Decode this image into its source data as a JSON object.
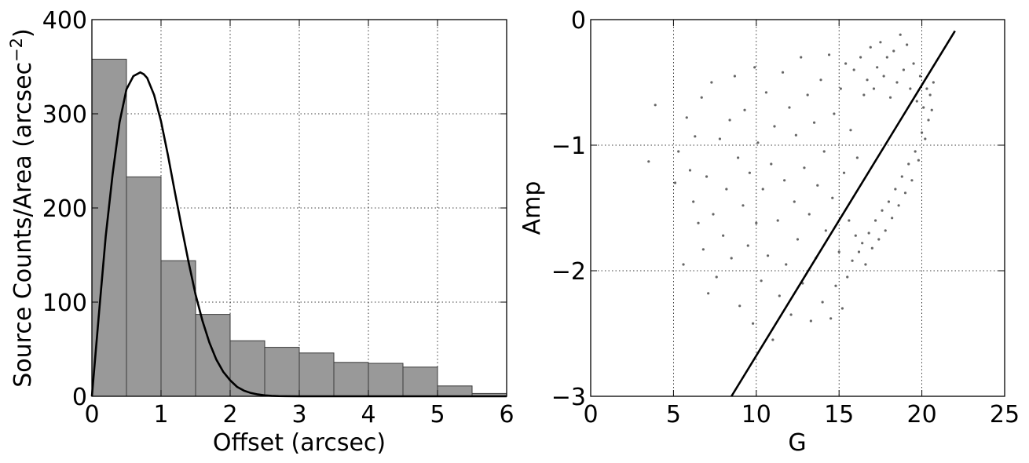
{
  "chart_data": [
    {
      "type": "bar",
      "subtype": "histogram_with_curve",
      "xlabel": "Offset (arcsec)",
      "ylabel": "Source Counts/Area (arcsec",
      "ylabel_superscript": "−2",
      "ylabel_suffix": ")",
      "xlim": [
        0,
        6
      ],
      "ylim": [
        0,
        400
      ],
      "grid": true,
      "xticks": [
        0,
        1,
        2,
        3,
        4,
        5,
        6
      ],
      "yticks": [
        0,
        100,
        200,
        300,
        400
      ],
      "xtick_labels": [
        "0",
        "1",
        "2",
        "3",
        "4",
        "5",
        "6"
      ],
      "ytick_labels": [
        "0",
        "100",
        "200",
        "300",
        "400"
      ],
      "bin_width": 0.5,
      "bin_edges": [
        0,
        0.5,
        1,
        1.5,
        2,
        2.5,
        3,
        3.5,
        4,
        4.5,
        5,
        5.5,
        6
      ],
      "values": [
        358,
        233,
        144,
        87,
        59,
        52,
        46,
        36,
        35,
        31,
        11,
        3
      ],
      "bar_color": "#999999",
      "curve": {
        "x": [
          0,
          0.1,
          0.2,
          0.3,
          0.4,
          0.5,
          0.6,
          0.7,
          0.75,
          0.8,
          0.9,
          1.0,
          1.1,
          1.2,
          1.3,
          1.4,
          1.5,
          1.6,
          1.7,
          1.8,
          1.9,
          2.0,
          2.1,
          2.2,
          2.3,
          2.4,
          2.5,
          2.6,
          2.7,
          2.8,
          3.0,
          6.0
        ],
        "y": [
          0,
          86,
          170,
          236,
          291,
          326,
          340,
          344,
          342,
          338,
          320,
          292,
          256,
          217,
          179,
          142,
          108,
          80,
          57,
          39,
          26,
          17,
          10,
          6,
          3.5,
          2,
          1,
          0.5,
          0.2,
          0.1,
          0,
          0
        ]
      }
    },
    {
      "type": "scatter",
      "xlabel": "G",
      "ylabel": "Amp",
      "xlim": [
        0,
        25
      ],
      "ylim": [
        -3,
        0
      ],
      "grid": true,
      "xticks": [
        0,
        5,
        10,
        15,
        20,
        25
      ],
      "yticks": [
        -3,
        -2,
        -1,
        0
      ],
      "xtick_labels": [
        "0",
        "5",
        "10",
        "15",
        "20",
        "25"
      ],
      "ytick_labels": [
        "−3",
        "−2",
        "−1",
        "0"
      ],
      "point_color": "#333333",
      "line": {
        "x": [
          8.5,
          22.0
        ],
        "y": [
          -3.0,
          -0.09
        ]
      },
      "points": [
        [
          3.5,
          -1.13
        ],
        [
          3.9,
          -0.68
        ],
        [
          5.1,
          -1.3
        ],
        [
          5.3,
          -1.05
        ],
        [
          5.6,
          -1.95
        ],
        [
          5.8,
          -0.78
        ],
        [
          6.0,
          -1.2
        ],
        [
          6.2,
          -1.45
        ],
        [
          6.3,
          -0.93
        ],
        [
          6.5,
          -1.62
        ],
        [
          6.7,
          -0.62
        ],
        [
          6.8,
          -1.83
        ],
        [
          7.0,
          -1.25
        ],
        [
          7.1,
          -2.18
        ],
        [
          7.3,
          -0.5
        ],
        [
          7.4,
          -1.55
        ],
        [
          7.6,
          -2.05
        ],
        [
          7.8,
          -0.95
        ],
        [
          8.0,
          -1.72
        ],
        [
          8.2,
          -1.35
        ],
        [
          8.4,
          -0.8
        ],
        [
          8.5,
          -1.9
        ],
        [
          8.7,
          -0.45
        ],
        [
          8.9,
          -1.1
        ],
        [
          9.0,
          -2.28
        ],
        [
          9.2,
          -1.48
        ],
        [
          9.3,
          -0.72
        ],
        [
          9.5,
          -1.8
        ],
        [
          9.6,
          -1.22
        ],
        [
          9.8,
          -2.42
        ],
        [
          9.9,
          -0.38
        ],
        [
          10.0,
          -1.62
        ],
        [
          10.1,
          -0.98
        ],
        [
          10.3,
          -2.08
        ],
        [
          10.4,
          -1.35
        ],
        [
          10.6,
          -0.58
        ],
        [
          10.7,
          -1.88
        ],
        [
          10.9,
          -1.15
        ],
        [
          11.0,
          -2.55
        ],
        [
          11.1,
          -0.85
        ],
        [
          11.3,
          -1.6
        ],
        [
          11.4,
          -2.2
        ],
        [
          11.6,
          -0.42
        ],
        [
          11.7,
          -1.28
        ],
        [
          11.8,
          -1.95
        ],
        [
          12.0,
          -0.7
        ],
        [
          12.1,
          -2.35
        ],
        [
          12.3,
          -1.45
        ],
        [
          12.4,
          -0.92
        ],
        [
          12.5,
          -1.75
        ],
        [
          12.7,
          -0.3
        ],
        [
          12.8,
          -2.1
        ],
        [
          12.9,
          -1.18
        ],
        [
          13.1,
          -0.6
        ],
        [
          13.2,
          -1.55
        ],
        [
          13.3,
          -2.4
        ],
        [
          13.5,
          -0.82
        ],
        [
          13.6,
          -1.9
        ],
        [
          13.7,
          -1.32
        ],
        [
          13.9,
          -0.48
        ],
        [
          14.0,
          -2.25
        ],
        [
          14.1,
          -1.05
        ],
        [
          14.2,
          -1.68
        ],
        [
          14.4,
          -0.28
        ],
        [
          14.5,
          -2.38
        ],
        [
          14.6,
          -1.42
        ],
        [
          14.7,
          -0.75
        ],
        [
          14.8,
          -2.12
        ],
        [
          15.0,
          -1.85
        ],
        [
          15.1,
          -0.55
        ],
        [
          15.2,
          -2.3
        ],
        [
          15.3,
          -1.22
        ],
        [
          15.4,
          -0.35
        ],
        [
          15.5,
          -2.05
        ],
        [
          15.6,
          -1.6
        ],
        [
          15.7,
          -0.88
        ],
        [
          15.8,
          -1.92
        ],
        [
          15.9,
          -0.4
        ],
        [
          16.0,
          -1.72
        ],
        [
          16.1,
          -1.1
        ],
        [
          16.2,
          -1.85
        ],
        [
          16.3,
          -0.3
        ],
        [
          16.4,
          -1.78
        ],
        [
          16.5,
          -0.6
        ],
        [
          16.6,
          -1.95
        ],
        [
          16.7,
          -0.48
        ],
        [
          16.8,
          -1.7
        ],
        [
          16.9,
          -0.22
        ],
        [
          17.0,
          -1.82
        ],
        [
          17.1,
          -0.55
        ],
        [
          17.2,
          -1.6
        ],
        [
          17.3,
          -0.38
        ],
        [
          17.4,
          -1.75
        ],
        [
          17.5,
          -0.18
        ],
        [
          17.6,
          -1.52
        ],
        [
          17.7,
          -0.45
        ],
        [
          17.8,
          -1.68
        ],
        [
          17.9,
          -0.3
        ],
        [
          18.0,
          -1.45
        ],
        [
          18.1,
          -0.62
        ],
        [
          18.2,
          -1.58
        ],
        [
          18.3,
          -0.25
        ],
        [
          18.4,
          -1.35
        ],
        [
          18.5,
          -0.5
        ],
        [
          18.6,
          -1.48
        ],
        [
          18.7,
          -0.12
        ],
        [
          18.8,
          -1.25
        ],
        [
          18.9,
          -0.4
        ],
        [
          19.0,
          -1.38
        ],
        [
          19.1,
          -0.2
        ],
        [
          19.2,
          -1.15
        ],
        [
          19.3,
          -0.55
        ],
        [
          19.4,
          -1.28
        ],
        [
          19.5,
          -0.35
        ],
        [
          19.6,
          -1.05
        ],
        [
          19.7,
          -0.65
        ],
        [
          19.8,
          -1.12
        ],
        [
          19.9,
          -0.45
        ],
        [
          20.0,
          -0.9
        ],
        [
          20.1,
          -0.7
        ],
        [
          20.2,
          -0.95
        ],
        [
          20.3,
          -0.55
        ],
        [
          20.4,
          -0.8
        ],
        [
          20.5,
          -0.6
        ],
        [
          20.6,
          -0.72
        ],
        [
          20.7,
          -0.5
        ]
      ]
    }
  ]
}
